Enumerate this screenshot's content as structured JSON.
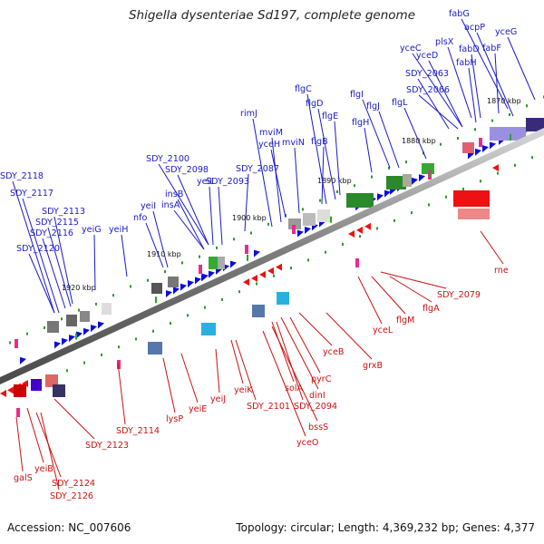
{
  "title": "Shigella dysenteriae Sd197, complete genome",
  "footer": {
    "accession": "Accession: NC_007606",
    "summary": "Topology: circular; Length: 4,369,232 bp; Genes: 4,377"
  },
  "colors": {
    "forward_label": "#1a1acc",
    "reverse_label": "#cc1111",
    "axis": "#8a8a8a"
  },
  "ticks": [
    "1870 kbp",
    "1880 kbp",
    "1890 kbp",
    "1900 kbp",
    "1910 kbp",
    "1920 kbp"
  ],
  "forward_genes": [
    "fabG",
    "acpP",
    "yceG",
    "plsX",
    "yceC",
    "fabD",
    "fabF",
    "yceD",
    "fabH",
    "SDY_2063",
    "SDY_2066",
    "flgL",
    "flgJ",
    "flgI",
    "flgH",
    "flgC",
    "flgD",
    "flgE",
    "flgB",
    "rimJ",
    "mviM",
    "yceH",
    "mviN",
    "SDY_2087",
    "SDY_2100",
    "SDY_2098",
    "yeiL",
    "insB",
    "insA",
    "SDY_2093",
    "yeiI",
    "nfo",
    "yeiH",
    "yeiG",
    "SDY_2118",
    "SDY_2117",
    "SDY_2113",
    "SDY_2115",
    "SDY_2116",
    "SDY_2120"
  ],
  "reverse_genes": [
    "rne",
    "SDY_2079",
    "flgA",
    "flgM",
    "yceL",
    "grxB",
    "yceB",
    "pyrC",
    "dinI",
    "solA",
    "SDY_2094",
    "bssS",
    "yceO",
    "SDY_2101",
    "yeiK",
    "yeiJ",
    "yeiE",
    "lysP",
    "SDY_2114",
    "SDY_2123",
    "yeiB",
    "galS",
    "SDY_2124",
    "SDY_2126"
  ]
}
